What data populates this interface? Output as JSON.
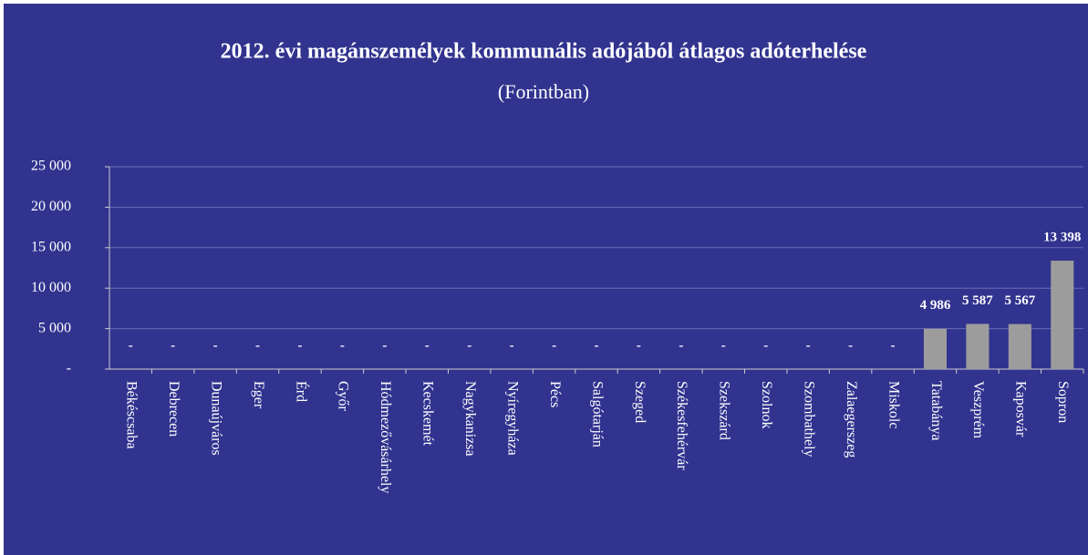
{
  "chart_data": {
    "type": "bar",
    "title": "2012. évi magánszemélyek kommunális adójából átlagos adóterhelése",
    "subtitle": "(Forintban)",
    "categories": [
      "Békéscsaba",
      "Debrecen",
      "Dunaújváros",
      "Eger",
      "Érd",
      "Győr",
      "Hódmezővásárhely",
      "Kecskemét",
      "Nagykanizsa",
      "Nyíregyháza",
      "Pécs",
      "Salgótarján",
      "Szeged",
      "Székesfehérvár",
      "Szekszárd",
      "Szolnok",
      "Szombathely",
      "Zalaegerszeg",
      "Miskolc",
      "Tatabánya",
      "Veszprém",
      "Kaposvár",
      "Sopron"
    ],
    "values": [
      0,
      0,
      0,
      0,
      0,
      0,
      0,
      0,
      0,
      0,
      0,
      0,
      0,
      0,
      0,
      0,
      0,
      0,
      0,
      4986,
      5587,
      5567,
      13398
    ],
    "value_labels": [
      "-",
      "-",
      "-",
      "-",
      "-",
      "-",
      "-",
      "-",
      "-",
      "-",
      "-",
      "-",
      "-",
      "-",
      "-",
      "-",
      "-",
      "-",
      "-",
      "4 986",
      "5 587",
      "5 567",
      "13 398"
    ],
    "color": "#9c9c9c",
    "ylim": [
      0,
      25000
    ],
    "yticks": [
      {
        "value": 0,
        "label": "-"
      },
      {
        "value": 5000,
        "label": "5 000"
      },
      {
        "value": 10000,
        "label": "10 000"
      },
      {
        "value": 15000,
        "label": "15 000"
      },
      {
        "value": 20000,
        "label": "20 000"
      },
      {
        "value": 25000,
        "label": "25 000"
      }
    ],
    "grid": true
  }
}
